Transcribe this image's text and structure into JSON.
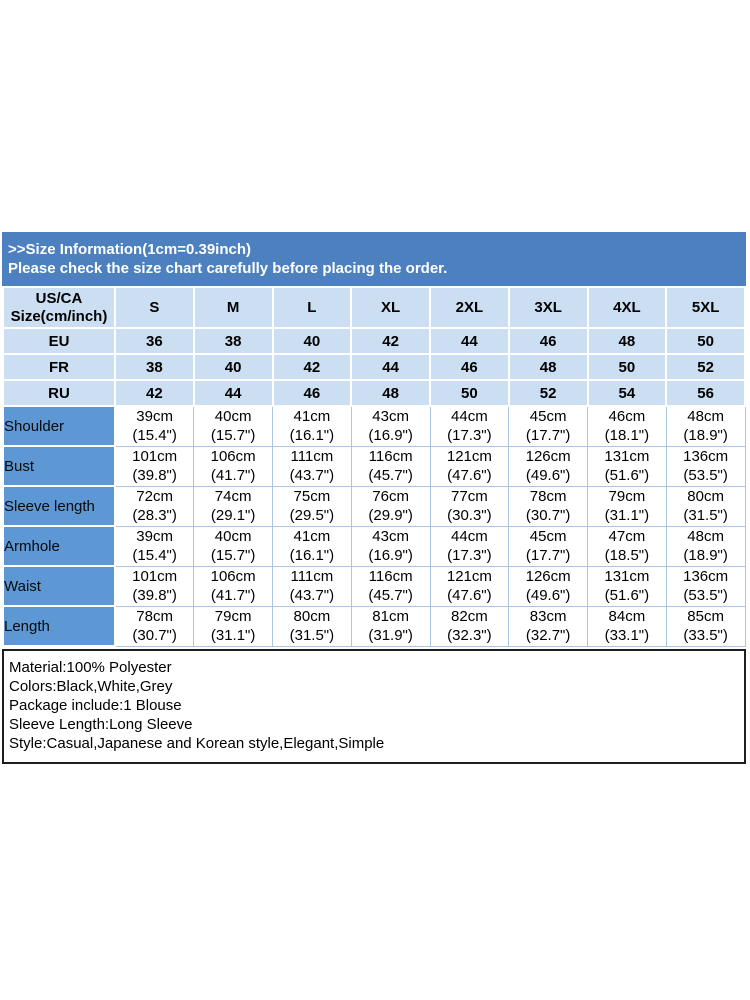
{
  "banner": {
    "line1": ">>Size Information(1cm=0.39inch)",
    "line2": "Please check the size chart carefully before placing the order."
  },
  "table": {
    "corner": {
      "line1": "US/CA",
      "line2": "Size(cm/inch)"
    },
    "size_headers": [
      "S",
      "M",
      "L",
      "XL",
      "2XL",
      "3XL",
      "4XL",
      "5XL"
    ],
    "region_rows": [
      {
        "label": "EU",
        "values": [
          36,
          38,
          40,
          42,
          44,
          46,
          48,
          50
        ]
      },
      {
        "label": "FR",
        "values": [
          38,
          40,
          42,
          44,
          46,
          48,
          50,
          52
        ]
      },
      {
        "label": "RU",
        "values": [
          42,
          44,
          46,
          48,
          50,
          52,
          54,
          56
        ]
      }
    ],
    "measurement_rows": [
      {
        "label": "Shoulder",
        "cells": [
          {
            "cm": "39cm",
            "in": "(15.4\")"
          },
          {
            "cm": "40cm",
            "in": "(15.7\")"
          },
          {
            "cm": "41cm",
            "in": "(16.1\")"
          },
          {
            "cm": "43cm",
            "in": "(16.9\")"
          },
          {
            "cm": "44cm",
            "in": "(17.3\")"
          },
          {
            "cm": "45cm",
            "in": "(17.7\")"
          },
          {
            "cm": "46cm",
            "in": "(18.1\")"
          },
          {
            "cm": "48cm",
            "in": "(18.9\")"
          }
        ]
      },
      {
        "label": "Bust",
        "cells": [
          {
            "cm": "101cm",
            "in": "(39.8\")"
          },
          {
            "cm": "106cm",
            "in": "(41.7\")"
          },
          {
            "cm": "111cm",
            "in": "(43.7\")"
          },
          {
            "cm": "116cm",
            "in": "(45.7\")"
          },
          {
            "cm": "121cm",
            "in": "(47.6\")"
          },
          {
            "cm": "126cm",
            "in": "(49.6\")"
          },
          {
            "cm": "131cm",
            "in": "(51.6\")"
          },
          {
            "cm": "136cm",
            "in": "(53.5\")"
          }
        ]
      },
      {
        "label": "Sleeve length",
        "cells": [
          {
            "cm": "72cm",
            "in": "(28.3\")"
          },
          {
            "cm": "74cm",
            "in": "(29.1\")"
          },
          {
            "cm": "75cm",
            "in": "(29.5\")"
          },
          {
            "cm": "76cm",
            "in": "(29.9\")"
          },
          {
            "cm": "77cm",
            "in": "(30.3\")"
          },
          {
            "cm": "78cm",
            "in": "(30.7\")"
          },
          {
            "cm": "79cm",
            "in": "(31.1\")"
          },
          {
            "cm": "80cm",
            "in": "(31.5\")"
          }
        ]
      },
      {
        "label": "Armhole",
        "cells": [
          {
            "cm": "39cm",
            "in": "(15.4\")"
          },
          {
            "cm": "40cm",
            "in": "(15.7\")"
          },
          {
            "cm": "41cm",
            "in": "(16.1\")"
          },
          {
            "cm": "43cm",
            "in": "(16.9\")"
          },
          {
            "cm": "44cm",
            "in": "(17.3\")"
          },
          {
            "cm": "45cm",
            "in": "(17.7\")"
          },
          {
            "cm": "47cm",
            "in": "(18.5\")"
          },
          {
            "cm": "48cm",
            "in": "(18.9\")"
          }
        ]
      },
      {
        "label": "Waist",
        "cells": [
          {
            "cm": "101cm",
            "in": "(39.8\")"
          },
          {
            "cm": "106cm",
            "in": "(41.7\")"
          },
          {
            "cm": "111cm",
            "in": "(43.7\")"
          },
          {
            "cm": "116cm",
            "in": "(45.7\")"
          },
          {
            "cm": "121cm",
            "in": "(47.6\")"
          },
          {
            "cm": "126cm",
            "in": "(49.6\")"
          },
          {
            "cm": "131cm",
            "in": "(51.6\")"
          },
          {
            "cm": "136cm",
            "in": "(53.5\")"
          }
        ]
      },
      {
        "label": "Length",
        "cells": [
          {
            "cm": "78cm",
            "in": "(30.7\")"
          },
          {
            "cm": "79cm",
            "in": "(31.1\")"
          },
          {
            "cm": "80cm",
            "in": "(31.5\")"
          },
          {
            "cm": "81cm",
            "in": "(31.9\")"
          },
          {
            "cm": "82cm",
            "in": "(32.3\")"
          },
          {
            "cm": "83cm",
            "in": "(32.7\")"
          },
          {
            "cm": "84cm",
            "in": "(33.1\")"
          },
          {
            "cm": "85cm",
            "in": "(33.5\")"
          }
        ]
      }
    ]
  },
  "details": {
    "lines": [
      "Material:100% Polyester",
      "Colors:Black,White,Grey",
      "Package include:1 Blouse",
      "Sleeve Length:Long Sleeve",
      "Style:Casual,Japanese and Korean style,Elegant,Simple"
    ]
  },
  "colors": {
    "banner_blue": "#4d80be",
    "header_light_blue": "#cbdef2",
    "label_medium_blue": "#5d97d4",
    "cell_border": "#abc6e2",
    "details_border": "#1e1e1e"
  }
}
